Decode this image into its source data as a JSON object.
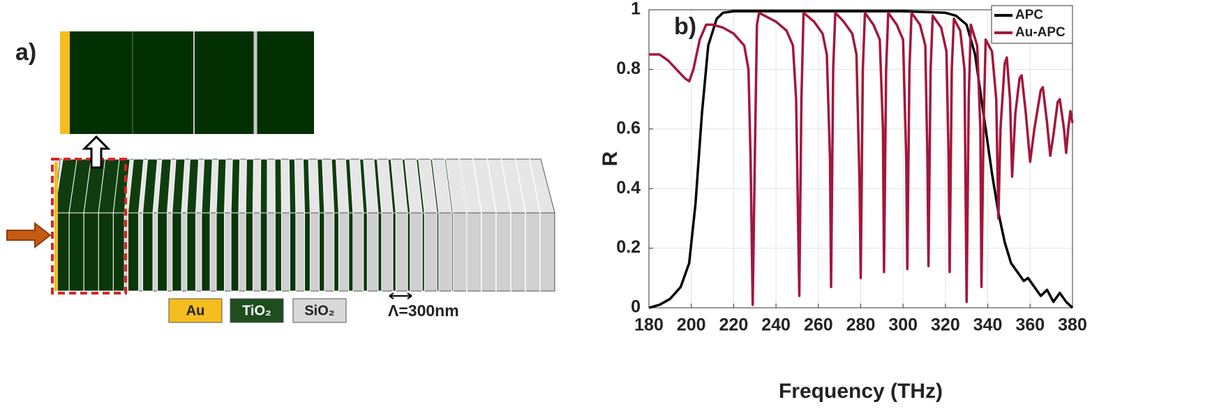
{
  "panel_a": {
    "label": "a)",
    "legend": [
      "Au",
      "TiO₂",
      "SiO₂"
    ],
    "period": "Λ=300nm"
  },
  "chart_data": {
    "type": "line",
    "panel_label": "b)",
    "xlabel": "Frequency (THz)",
    "ylabel": "R",
    "xlim": [
      180,
      380
    ],
    "xticks": [
      180,
      200,
      220,
      240,
      260,
      280,
      300,
      320,
      340,
      360,
      380
    ],
    "ylim": [
      0,
      1
    ],
    "yticks": [
      0,
      0.2,
      0.4,
      0.6,
      0.8,
      1
    ],
    "grid": true,
    "legend_corner": "upper right",
    "series": [
      {
        "name": "APC",
        "color": "#000000",
        "x": [
          180,
          185,
          190,
          195,
          199,
          202,
          205,
          208,
          212,
          215,
          220,
          240,
          300,
          320,
          325,
          330,
          334,
          338,
          342,
          345,
          348,
          351,
          354,
          357,
          359,
          362,
          365,
          368,
          371,
          374,
          377,
          380
        ],
        "values": [
          0.0,
          0.01,
          0.03,
          0.07,
          0.15,
          0.35,
          0.65,
          0.88,
          0.97,
          0.99,
          0.995,
          0.995,
          0.995,
          0.99,
          0.98,
          0.95,
          0.85,
          0.65,
          0.45,
          0.32,
          0.22,
          0.15,
          0.12,
          0.09,
          0.1,
          0.07,
          0.04,
          0.06,
          0.02,
          0.05,
          0.02,
          0.0
        ]
      },
      {
        "name": "Au-APC",
        "color": "#a3173a",
        "x": [
          180,
          185,
          189,
          193,
          197,
          199,
          201,
          204,
          207,
          210,
          215,
          220,
          225,
          227,
          228,
          229,
          230,
          231,
          232,
          240,
          245,
          248,
          249.5,
          251,
          252,
          253,
          258,
          262,
          264,
          265.5,
          266,
          267,
          268,
          272,
          276,
          278,
          279.5,
          280,
          281,
          282,
          286,
          289,
          290.5,
          291,
          292,
          293,
          297,
          300,
          301.5,
          302,
          303,
          304,
          308,
          310.5,
          311.5,
          312,
          313,
          314,
          318,
          320.5,
          321.5,
          322,
          323,
          324,
          327,
          329,
          330,
          331,
          332,
          335,
          336.5,
          337,
          338,
          339,
          342,
          344,
          345,
          346,
          348,
          349,
          350.5,
          351.5,
          353,
          355,
          356,
          358,
          360,
          362,
          365,
          366,
          368,
          369.5,
          371,
          373,
          374,
          376,
          377,
          378,
          379,
          380
        ],
        "values": [
          0.85,
          0.85,
          0.83,
          0.8,
          0.77,
          0.76,
          0.8,
          0.9,
          0.95,
          0.95,
          0.94,
          0.92,
          0.88,
          0.8,
          0.5,
          0.01,
          0.5,
          0.95,
          0.99,
          0.96,
          0.93,
          0.88,
          0.7,
          0.04,
          0.7,
          0.99,
          0.96,
          0.92,
          0.85,
          0.5,
          0.07,
          0.8,
          0.99,
          0.96,
          0.92,
          0.85,
          0.4,
          0.1,
          0.8,
          0.99,
          0.95,
          0.9,
          0.6,
          0.12,
          0.8,
          0.99,
          0.95,
          0.9,
          0.5,
          0.13,
          0.8,
          0.99,
          0.95,
          0.88,
          0.5,
          0.14,
          0.8,
          0.98,
          0.94,
          0.86,
          0.5,
          0.12,
          0.8,
          0.97,
          0.93,
          0.8,
          0.02,
          0.7,
          0.95,
          0.88,
          0.6,
          0.07,
          0.6,
          0.9,
          0.86,
          0.7,
          0.3,
          0.6,
          0.82,
          0.84,
          0.7,
          0.44,
          0.65,
          0.77,
          0.78,
          0.65,
          0.49,
          0.6,
          0.73,
          0.74,
          0.62,
          0.51,
          0.58,
          0.69,
          0.7,
          0.6,
          0.52,
          0.6,
          0.66,
          0.62
        ]
      }
    ]
  }
}
